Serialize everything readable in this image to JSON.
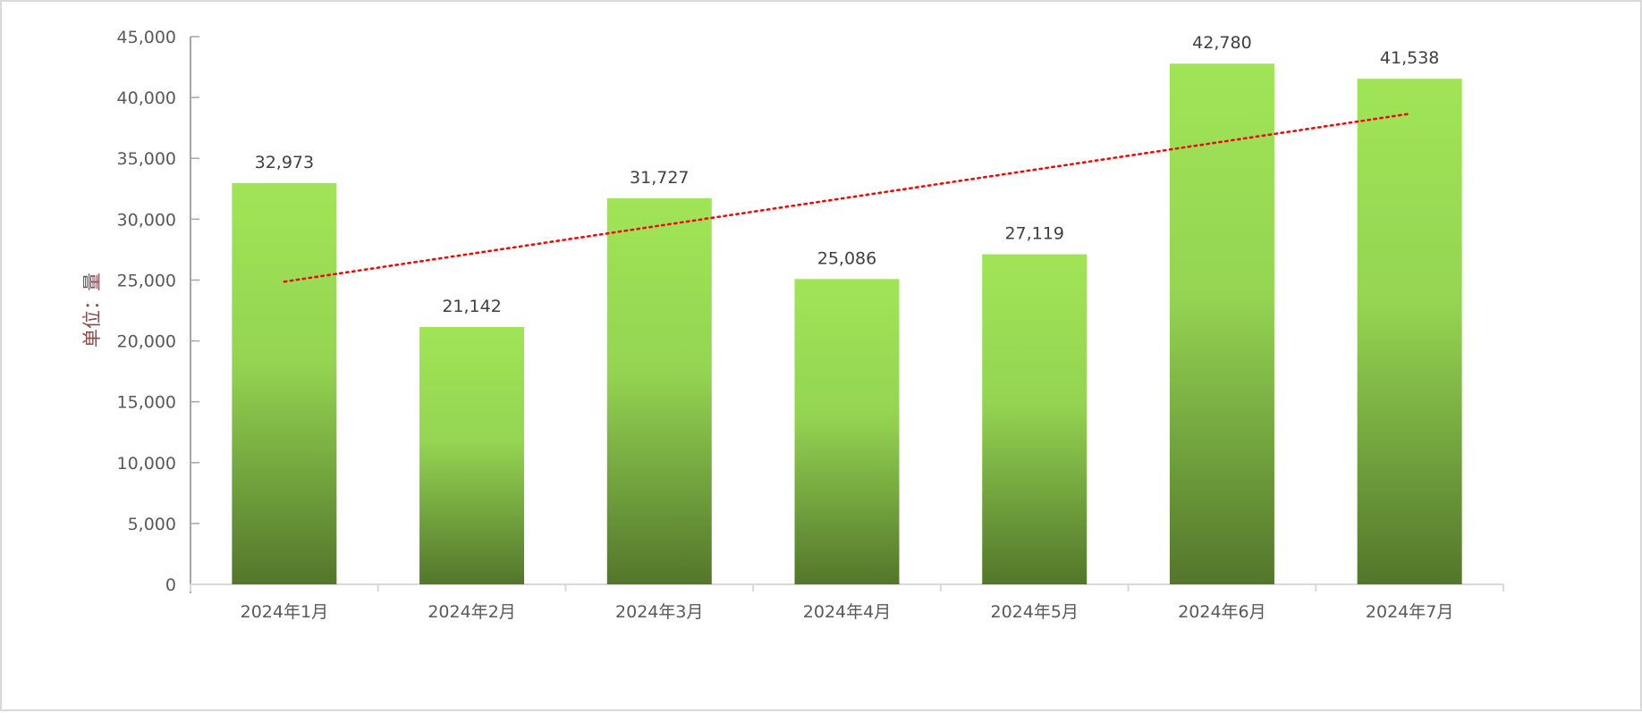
{
  "chart_data": {
    "type": "bar",
    "title": "",
    "xlabel": "",
    "ylabel": "单位：量",
    "categories": [
      "2024年1月",
      "2024年2月",
      "2024年3月",
      "2024年4月",
      "2024年5月",
      "2024年6月",
      "2024年7月"
    ],
    "values": [
      32973,
      21142,
      31727,
      25086,
      27119,
      42780,
      41538
    ],
    "data_labels": [
      "32,973",
      "21,142",
      "31,727",
      "25,086",
      "27,119",
      "42,780",
      "41,538"
    ],
    "ylim": [
      0,
      45000
    ],
    "yticks": [
      0,
      5000,
      10000,
      15000,
      20000,
      25000,
      30000,
      35000,
      40000,
      45000
    ],
    "ytick_labels": [
      "0",
      "5,000",
      "10,000",
      "15,000",
      "20,000",
      "25,000",
      "30,000",
      "35,000",
      "40,000",
      "45,000"
    ],
    "grid": false,
    "legend": "none",
    "trendline": {
      "type": "linear",
      "style": "dotted",
      "color": "#ff0000"
    },
    "colors": {
      "bar_top": "#a0e556",
      "bar_bottom": "#53762b",
      "axis": "#a6a6a6",
      "tick_text": "#595959",
      "ylabel_text": "#8b4a4a"
    }
  }
}
